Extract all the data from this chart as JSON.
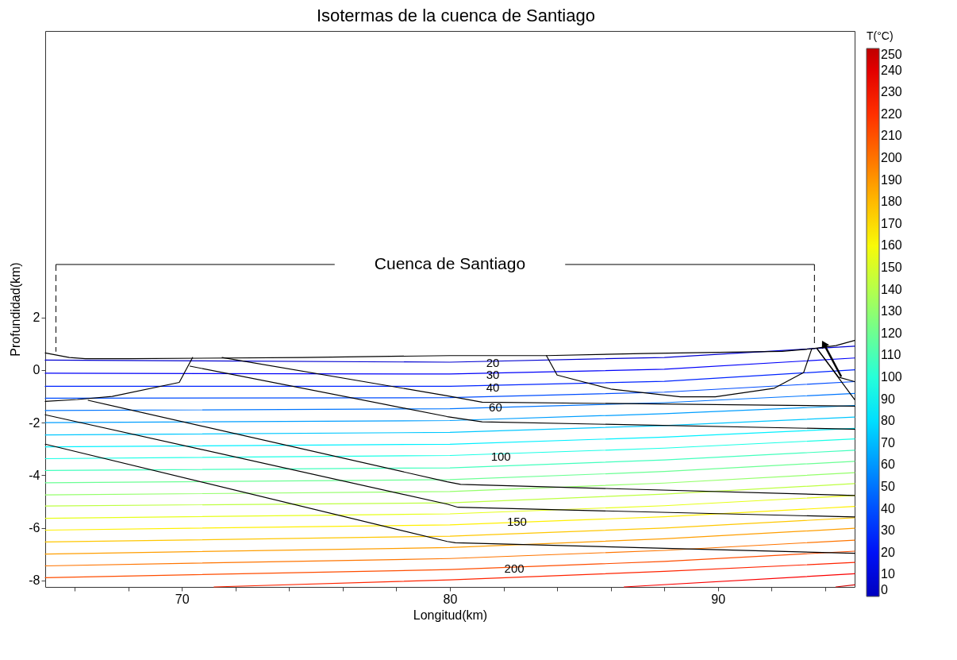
{
  "chart_data": {
    "type": "line",
    "title": "Isotermas de la cuenca de Santiago",
    "xlabel": "Longitud(km)",
    "ylabel": "Profundidad(km)",
    "clabel": "T(°C)",
    "xlim": [
      64.9,
      95.1
    ],
    "ylim": [
      -8.25,
      12.9
    ],
    "xticks": [
      {
        "value": 66,
        "label": null
      },
      {
        "value": 68,
        "label": null
      },
      70,
      {
        "value": 72,
        "label": null
      },
      {
        "value": 74,
        "label": null
      },
      {
        "value": 76,
        "label": null
      },
      {
        "value": 78,
        "label": null
      },
      80,
      {
        "value": 82,
        "label": null
      },
      {
        "value": 84,
        "label": null
      },
      {
        "value": 86,
        "label": null
      },
      {
        "value": 88,
        "label": null
      },
      90,
      {
        "value": 92,
        "label": null
      },
      {
        "value": 94,
        "label": null
      }
    ],
    "yticks": [
      -8,
      -6,
      -4,
      -2,
      0,
      2
    ],
    "clim": [
      0,
      250
    ],
    "cticks": [
      0,
      10,
      20,
      30,
      40,
      50,
      60,
      70,
      80,
      90,
      100,
      110,
      120,
      130,
      140,
      150,
      160,
      170,
      180,
      190,
      200,
      210,
      220,
      230,
      240,
      250
    ],
    "grid": false,
    "series": [
      {
        "type": "line",
        "color": "#0000d1",
        "x": [
          64.9,
          80,
          88,
          95.1
        ],
        "values": [
          0.38,
          0.3,
          0.48,
          0.91
        ]
      },
      {
        "type": "line",
        "color": "#0000fa",
        "x": [
          64.9,
          80,
          88,
          95.1
        ],
        "values": [
          -0.12,
          -0.15,
          0.03,
          0.46
        ]
      },
      {
        "type": "line",
        "color": "#0024ff",
        "x": [
          64.9,
          80,
          88,
          95.1
        ],
        "values": [
          -0.62,
          -0.62,
          -0.43,
          0.01
        ]
      },
      {
        "type": "line",
        "color": "#004dff",
        "x": [
          64.9,
          80,
          88,
          95.1
        ],
        "values": [
          -1.07,
          -1.05,
          -0.84,
          -0.44
        ]
      },
      {
        "type": "line",
        "color": "#0075ff",
        "x": [
          64.9,
          80,
          88,
          95.1
        ],
        "values": [
          -1.54,
          -1.47,
          -1.24,
          -0.89
        ]
      },
      {
        "type": "line",
        "color": "#009eff",
        "x": [
          64.9,
          80,
          88,
          95.1
        ],
        "values": [
          -2.0,
          -1.92,
          -1.66,
          -1.35
        ]
      },
      {
        "type": "line",
        "color": "#00c7ff",
        "x": [
          64.9,
          80,
          88,
          95.1
        ],
        "values": [
          -2.47,
          -2.37,
          -2.11,
          -1.79
        ]
      },
      {
        "type": "line",
        "color": "#00f0ff",
        "x": [
          64.9,
          80,
          88,
          95.1
        ],
        "values": [
          -2.92,
          -2.82,
          -2.55,
          -2.22
        ]
      },
      {
        "type": "line",
        "color": "#1affe6",
        "x": [
          64.9,
          80,
          88,
          95.1
        ],
        "values": [
          -3.37,
          -3.25,
          -2.97,
          -2.62
        ]
      },
      {
        "type": "line",
        "color": "#42ffbd",
        "x": [
          64.9,
          80,
          88,
          95.1
        ],
        "values": [
          -3.82,
          -3.72,
          -3.42,
          -3.05
        ]
      },
      {
        "type": "line",
        "color": "#6bff94",
        "x": [
          64.9,
          80,
          88,
          95.1
        ],
        "values": [
          -4.29,
          -4.17,
          -3.86,
          -3.47
        ]
      },
      {
        "type": "line",
        "color": "#94ff6b",
        "x": [
          64.9,
          80,
          88,
          95.1
        ],
        "values": [
          -4.75,
          -4.62,
          -4.3,
          -3.9
        ]
      },
      {
        "type": "line",
        "color": "#bdff42",
        "x": [
          64.9,
          80,
          88,
          95.1
        ],
        "values": [
          -5.17,
          -5.05,
          -4.72,
          -4.32
        ]
      },
      {
        "type": "line",
        "color": "#e6ff1a",
        "x": [
          64.9,
          80,
          88,
          95.1
        ],
        "values": [
          -5.64,
          -5.47,
          -5.16,
          -4.77
        ]
      },
      {
        "type": "line",
        "color": "#fff000",
        "x": [
          64.9,
          80,
          88,
          95.1
        ],
        "values": [
          -6.09,
          -5.89,
          -5.58,
          -5.19
        ]
      },
      {
        "type": "line",
        "color": "#ffc700",
        "x": [
          64.9,
          80,
          88,
          95.1
        ],
        "values": [
          -6.54,
          -6.32,
          -6.01,
          -5.62
        ]
      },
      {
        "type": "line",
        "color": "#ff9e00",
        "x": [
          64.9,
          80,
          88,
          95.1
        ],
        "values": [
          -7.0,
          -6.75,
          -6.42,
          -6.02
        ]
      },
      {
        "type": "line",
        "color": "#ff7500",
        "x": [
          64.9,
          80,
          88,
          95.1
        ],
        "values": [
          -7.45,
          -7.17,
          -6.86,
          -6.47
        ]
      },
      {
        "type": "line",
        "color": "#ff4d00",
        "x": [
          64.9,
          80,
          88,
          95.1
        ],
        "values": [
          -7.9,
          -7.59,
          -7.28,
          -6.89
        ]
      },
      {
        "type": "line",
        "color": "#ff2400",
        "x": [
          71.2,
          80,
          88,
          95.1
        ],
        "values": [
          -8.25,
          -7.98,
          -7.66,
          -7.32
        ]
      },
      {
        "type": "line",
        "color": "#fa0000",
        "x": [
          86.5,
          95.1
        ],
        "values": [
          -8.25,
          -7.75
        ]
      },
      {
        "type": "line",
        "color": "#d10000",
        "x": [
          94.4,
          95.1
        ],
        "values": [
          -8.25,
          -8.17
        ]
      },
      {
        "type": "line",
        "color": "#000000",
        "x": [
          64.9,
          65.8,
          66.4,
          68,
          74.5,
          80,
          83.6,
          87.2,
          92.4,
          93.5,
          94.4,
          95.1
        ],
        "values": [
          0.65,
          0.48,
          0.43,
          0.43,
          0.48,
          0.55,
          0.55,
          0.63,
          0.71,
          0.81,
          0.93,
          1.13
        ]
      },
      {
        "type": "line",
        "color": "#000000",
        "x": [
          70.4,
          69.9,
          67.4,
          66.1,
          64.9
        ],
        "values": [
          0.48,
          -0.47,
          -1.0,
          -1.12,
          -1.19
        ]
      },
      {
        "type": "line",
        "color": "#000000",
        "x": [
          70.3,
          79.9,
          81.2,
          95.1
        ],
        "values": [
          0.15,
          -1.77,
          -1.97,
          -2.25
        ]
      },
      {
        "type": "line",
        "color": "#000000",
        "x": [
          71.5,
          79.9,
          81.2,
          95.1
        ],
        "values": [
          0.48,
          -0.98,
          -1.22,
          -1.37
        ]
      },
      {
        "type": "line",
        "color": "#000000",
        "x": [
          66.5,
          79.9,
          80.4,
          95.1
        ],
        "values": [
          -1.15,
          -4.25,
          -4.35,
          -4.77
        ]
      },
      {
        "type": "line",
        "color": "#000000",
        "x": [
          64.9,
          79.9,
          80.3,
          95.1
        ],
        "values": [
          -1.7,
          -5.1,
          -5.22,
          -5.59
        ]
      },
      {
        "type": "line",
        "color": "#000000",
        "x": [
          64.9,
          79.9,
          80.2,
          95.1
        ],
        "values": [
          -2.82,
          -6.52,
          -6.57,
          -6.97
        ]
      },
      {
        "type": "line",
        "color": "#000000",
        "x": [
          83.6,
          84.0,
          86.0,
          88.6,
          89.9,
          92.1,
          93.2,
          93.5
        ],
        "values": [
          0.55,
          -0.19,
          -0.72,
          -1.02,
          -1.02,
          -0.69,
          -0.09,
          0.81
        ]
      },
      {
        "type": "line",
        "color": "#000000",
        "x": [
          93.7,
          94.5,
          95.1
        ],
        "values": [
          0.81,
          -0.27,
          -0.44
        ]
      },
      {
        "type": "line",
        "color": "#000000",
        "x": [
          93.7,
          95.1
        ],
        "values": [
          0.81,
          -1.12
        ]
      }
    ],
    "annotations": [
      {
        "text": "20",
        "x": 81.6,
        "y": 0.26
      },
      {
        "text": "30",
        "x": 81.6,
        "y": -0.17
      },
      {
        "text": "40",
        "x": 81.6,
        "y": -0.67
      },
      {
        "text": "60",
        "x": 81.7,
        "y": -1.42
      },
      {
        "text": "100",
        "x": 81.9,
        "y": -3.3
      },
      {
        "text": "150",
        "x": 82.5,
        "y": -5.77
      },
      {
        "text": "200",
        "x": 82.4,
        "y": -7.54
      },
      "Cuenca de Santiago"
    ]
  }
}
